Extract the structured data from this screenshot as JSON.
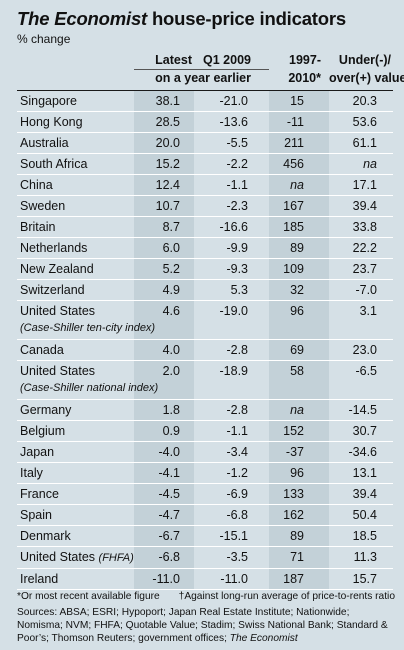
{
  "title": {
    "italic": "The Economist",
    "rest": " house-price indicators"
  },
  "subtitle": "% change",
  "headers": {
    "latest": "Latest",
    "q1_2009": "Q1 2009",
    "on_year_earlier": "on a year earlier",
    "period_1": "1997-",
    "period_2": "2010*",
    "valued_1": "Under(-)/",
    "valued_2": "over(+) valued†"
  },
  "chart_data": {
    "type": "table",
    "title": "The Economist house-price indicators",
    "subtitle": "% change",
    "columns": [
      "Latest",
      "Q1 2009",
      "1997-2010*",
      "Under(-)/over(+) valued†"
    ],
    "rows": [
      {
        "country": "Singapore",
        "note": "",
        "latest": "38.1",
        "q1_2009": "-21.0",
        "period": "15",
        "valued": "20.3"
      },
      {
        "country": "Hong Kong",
        "note": "",
        "latest": "28.5",
        "q1_2009": "-13.6",
        "period": "-11",
        "valued": "53.6"
      },
      {
        "country": "Australia",
        "note": "",
        "latest": "20.0",
        "q1_2009": "-5.5",
        "period": "211",
        "valued": "61.1"
      },
      {
        "country": "South Africa",
        "note": "",
        "latest": "15.2",
        "q1_2009": "-2.2",
        "period": "456",
        "valued": "na"
      },
      {
        "country": "China",
        "note": "",
        "latest": "12.4",
        "q1_2009": "-1.1",
        "period": "na",
        "valued": "17.1"
      },
      {
        "country": "Sweden",
        "note": "",
        "latest": "10.7",
        "q1_2009": "-2.3",
        "period": "167",
        "valued": "39.4"
      },
      {
        "country": "Britain",
        "note": "",
        "latest": "8.7",
        "q1_2009": "-16.6",
        "period": "185",
        "valued": "33.8"
      },
      {
        "country": "Netherlands",
        "note": "",
        "latest": "6.0",
        "q1_2009": "-9.9",
        "period": "89",
        "valued": "22.2"
      },
      {
        "country": "New Zealand",
        "note": "",
        "latest": "5.2",
        "q1_2009": "-9.3",
        "period": "109",
        "valued": "23.7"
      },
      {
        "country": "Switzerland",
        "note": "",
        "latest": "4.9",
        "q1_2009": "5.3",
        "period": "32",
        "valued": "-7.0"
      },
      {
        "country": "United States",
        "note": "(Case-Shiller ten-city index)",
        "latest": "4.6",
        "q1_2009": "-19.0",
        "period": "96",
        "valued": "3.1"
      },
      {
        "country": "Canada",
        "note": "",
        "latest": "4.0",
        "q1_2009": "-2.8",
        "period": "69",
        "valued": "23.0"
      },
      {
        "country": "United States",
        "note": "(Case-Shiller national index)",
        "latest": "2.0",
        "q1_2009": "-18.9",
        "period": "58",
        "valued": "-6.5"
      },
      {
        "country": "Germany",
        "note": "",
        "latest": "1.8",
        "q1_2009": "-2.8",
        "period": "na",
        "valued": "-14.5"
      },
      {
        "country": "Belgium",
        "note": "",
        "latest": "0.9",
        "q1_2009": "-1.1",
        "period": "152",
        "valued": "30.7"
      },
      {
        "country": "Japan",
        "note": "",
        "latest": "-4.0",
        "q1_2009": "-3.4",
        "period": "-37",
        "valued": "-34.6"
      },
      {
        "country": "Italy",
        "note": "",
        "latest": "-4.1",
        "q1_2009": "-1.2",
        "period": "96",
        "valued": "13.1"
      },
      {
        "country": "France",
        "note": "",
        "latest": "-4.5",
        "q1_2009": "-6.9",
        "period": "133",
        "valued": "39.4"
      },
      {
        "country": "Spain",
        "note": "",
        "latest": "-4.7",
        "q1_2009": "-6.8",
        "period": "162",
        "valued": "50.4"
      },
      {
        "country": "Denmark",
        "note": "",
        "latest": "-6.7",
        "q1_2009": "-15.1",
        "period": "89",
        "valued": "18.5"
      },
      {
        "country": "United States",
        "note": "(FHFA)",
        "latest": "-6.8",
        "q1_2009": "-3.5",
        "period": "71",
        "valued": "11.3"
      },
      {
        "country": "Ireland",
        "note": "",
        "latest": "-11.0",
        "q1_2009": "-11.0",
        "period": "187",
        "valued": "15.7"
      }
    ]
  },
  "footnotes": {
    "star": "*Or most recent available figure",
    "dagger": "†Against long-run average of price-to-rents ratio",
    "sources": "Sources: ABSA; ESRI; Hypoport; Japan Real Estate Institute; Nationwide; Nomisma; NVM; FHFA; Quotable Value; Stadim; Swiss National Bank; Standard & Poor’s; Thomson Reuters; government offices; ",
    "sources_end": "The Economist"
  }
}
